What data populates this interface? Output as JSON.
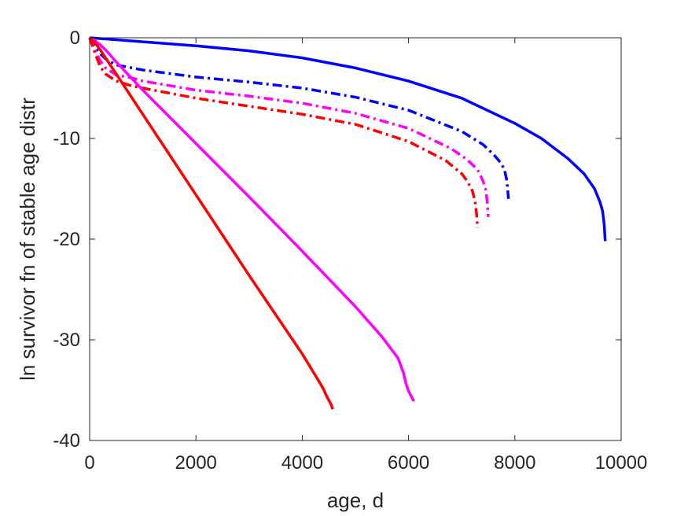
{
  "chart_data": {
    "type": "line",
    "title": "",
    "xlabel": "age, d",
    "ylabel": "ln survivor fn of stable age distr",
    "xlim": [
      0,
      10000
    ],
    "ylim": [
      -40,
      0
    ],
    "xticks": [
      0,
      2000,
      4000,
      6000,
      8000,
      10000
    ],
    "xtick_labels": [
      "0",
      "2000",
      "4000",
      "6000",
      "8000",
      "10000"
    ],
    "yticks": [
      0,
      -10,
      -20,
      -30,
      -40
    ],
    "ytick_labels": [
      "0",
      "-10",
      "-20",
      "-30",
      "-40"
    ],
    "grid": false,
    "legend": "none",
    "series": [
      {
        "color": "#0000ff",
        "dash": "solid",
        "x": [
          0,
          500,
          1000,
          2000,
          3000,
          4000,
          5000,
          6000,
          7000,
          8000,
          8500,
          9000,
          9300,
          9500,
          9600,
          9650,
          9680,
          9700
        ],
        "y": [
          0,
          -0.2,
          -0.4,
          -0.8,
          -1.3,
          -2.0,
          -3.0,
          -4.3,
          -6.0,
          -8.5,
          -10.0,
          -12.0,
          -13.5,
          -15.0,
          -16.3,
          -17.2,
          -18.5,
          -20.2
        ]
      },
      {
        "color": "#0000ff",
        "dash": "dashdot",
        "x": [
          0,
          100,
          200,
          300,
          500,
          800,
          1000,
          2000,
          3000,
          4000,
          5000,
          6000,
          7000,
          7400,
          7600,
          7700,
          7800,
          7850,
          7880
        ],
        "y": [
          0,
          -0.9,
          -1.6,
          -2.1,
          -2.7,
          -3.0,
          -3.2,
          -3.9,
          -4.4,
          -5.0,
          -5.9,
          -7.2,
          -9.3,
          -10.6,
          -11.6,
          -12.2,
          -13.0,
          -14.2,
          -16.0
        ]
      },
      {
        "color": "#ff00ff",
        "dash": "dashdot",
        "x": [
          0,
          100,
          200,
          300,
          500,
          800,
          1000,
          2000,
          3000,
          4000,
          5000,
          6000,
          6800,
          7100,
          7300,
          7400,
          7450,
          7480,
          7500
        ],
        "y": [
          0,
          -1.2,
          -2.3,
          -3.0,
          -3.7,
          -4.0,
          -4.3,
          -5.2,
          -5.8,
          -6.5,
          -7.5,
          -9.0,
          -11.0,
          -12.1,
          -13.1,
          -14.2,
          -15.0,
          -16.3,
          -17.8
        ]
      },
      {
        "color": "#ff0000",
        "dash": "dashdot",
        "x": [
          0,
          100,
          200,
          300,
          500,
          800,
          1000,
          2000,
          3000,
          4000,
          5000,
          6000,
          6700,
          7000,
          7100,
          7200,
          7250,
          7280,
          7300
        ],
        "y": [
          0,
          -1.5,
          -2.9,
          -3.6,
          -4.3,
          -4.8,
          -5.0,
          -6.0,
          -6.8,
          -7.6,
          -8.6,
          -10.3,
          -12.2,
          -13.5,
          -14.2,
          -15.2,
          -16.2,
          -17.5,
          -18.9
        ]
      },
      {
        "color": "#ff00ff",
        "dash": "solid",
        "x": [
          0,
          100,
          200,
          300,
          500,
          1000,
          2000,
          3000,
          4000,
          5000,
          5500,
          5800,
          5900,
          5950,
          6000,
          6050,
          6100
        ],
        "y": [
          0,
          -0.3,
          -0.7,
          -1.2,
          -2.4,
          -5.2,
          -10.5,
          -15.8,
          -21.2,
          -26.7,
          -29.7,
          -31.8,
          -33.2,
          -34.3,
          -35.1,
          -35.6,
          -36.1
        ]
      },
      {
        "color": "#ff0000",
        "dash": "solid",
        "x": [
          0,
          100,
          200,
          300,
          500,
          1000,
          1500,
          2000,
          2500,
          3000,
          3500,
          4000,
          4300,
          4400,
          4450,
          4500,
          4550,
          4570
        ],
        "y": [
          0,
          -0.5,
          -1.2,
          -2.0,
          -3.6,
          -7.6,
          -11.6,
          -15.6,
          -19.6,
          -23.6,
          -27.5,
          -31.4,
          -34.0,
          -34.9,
          -35.5,
          -36.0,
          -36.5,
          -36.9
        ]
      }
    ]
  }
}
